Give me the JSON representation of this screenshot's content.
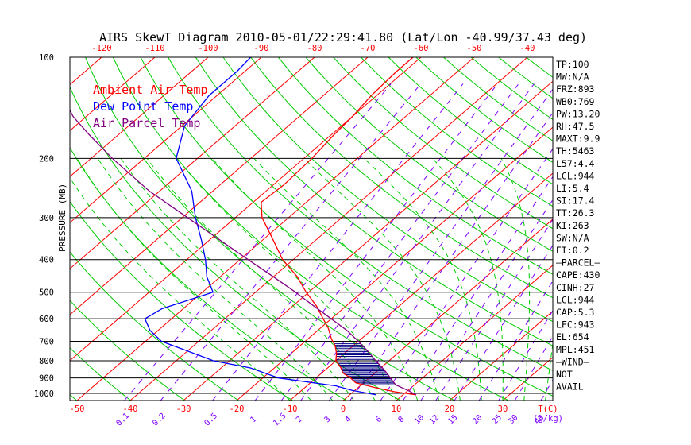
{
  "chart_data": {
    "type": "line",
    "title": "AIRS SkewT Diagram 2010-05-01/22:29:41.80 (Lat/Lon -40.99/37.43 deg)",
    "ylabel": "PRESSURE (MB)",
    "xlabel_bottom_unit": "T(C)",
    "mixing_ratio_unit": "(g/kg)",
    "ylim": [
      1050,
      100
    ],
    "yscale": "log",
    "pressure_ticks": [
      {
        "v": 100,
        "label": "100"
      },
      {
        "v": 200,
        "label": "200"
      },
      {
        "v": 300,
        "label": "300"
      },
      {
        "v": 400,
        "label": "400"
      },
      {
        "v": 500,
        "label": "500"
      },
      {
        "v": 600,
        "label": "600"
      },
      {
        "v": 700,
        "label": "700"
      },
      {
        "v": 800,
        "label": "800"
      },
      {
        "v": 900,
        "label": "900"
      },
      {
        "v": 1000,
        "label": "1000"
      }
    ],
    "top_temp_ticks": [
      -120,
      -110,
      -100,
      -90,
      -80,
      -70,
      -60,
      -50,
      -40
    ],
    "bottom_temp_ticks": [
      -50,
      -40,
      -30,
      -20,
      -10,
      0,
      10,
      20,
      30
    ],
    "mixing_ratio_labels": [
      "0.1",
      "0.2",
      "0.5",
      "1",
      "1.5",
      "2",
      "3",
      "4",
      "6",
      "8",
      "10",
      "12",
      "15",
      "20",
      "25",
      "30",
      "40"
    ],
    "legend": [
      {
        "name": "Ambient Air Temp",
        "color": "#ff0000"
      },
      {
        "name": "Dew Point Temp",
        "color": "#0000ff"
      },
      {
        "name": "Air Parcel Temp",
        "color": "#800080"
      }
    ],
    "legend_position": "top-left",
    "series": [
      {
        "name": "Ambient Air Temp",
        "color": "#ff0000",
        "points": [
          [
            1010,
            12.5
          ],
          [
            990,
            8.0
          ],
          [
            960,
            3.0
          ],
          [
            930,
            -1.5
          ],
          [
            900,
            -3.5
          ],
          [
            870,
            -6.0
          ],
          [
            840,
            -7.5
          ],
          [
            800,
            -10.0
          ],
          [
            760,
            -11.5
          ],
          [
            720,
            -13.5
          ],
          [
            690,
            -15.5
          ],
          [
            640,
            -18.5
          ],
          [
            600,
            -21.5
          ],
          [
            550,
            -25.5
          ],
          [
            500,
            -30.5
          ],
          [
            450,
            -35.5
          ],
          [
            400,
            -42.0
          ],
          [
            350,
            -48.0
          ],
          [
            300,
            -55.0
          ],
          [
            270,
            -58.5
          ],
          [
            240,
            -58.0
          ],
          [
            200,
            -58.5
          ],
          [
            170,
            -59.5
          ],
          [
            150,
            -60.0
          ],
          [
            130,
            -61.0
          ],
          [
            110,
            -61.5
          ],
          [
            100,
            -61.5
          ]
        ]
      },
      {
        "name": "Dew Point Temp",
        "color": "#0000ff",
        "points": [
          [
            1010,
            5.0
          ],
          [
            980,
            -0.5
          ],
          [
            950,
            -4.5
          ],
          [
            900,
            -17.0
          ],
          [
            840,
            -24.5
          ],
          [
            800,
            -33.0
          ],
          [
            700,
            -47.0
          ],
          [
            650,
            -51.5
          ],
          [
            600,
            -55.0
          ],
          [
            560,
            -54.0
          ],
          [
            500,
            -48.0
          ],
          [
            450,
            -52.5
          ],
          [
            400,
            -56.5
          ],
          [
            350,
            -61.5
          ],
          [
            300,
            -67.5
          ],
          [
            250,
            -74.0
          ],
          [
            200,
            -84.0
          ],
          [
            160,
            -89.5
          ],
          [
            130,
            -91.5
          ],
          [
            110,
            -91.5
          ],
          [
            100,
            -92.0
          ]
        ]
      },
      {
        "name": "Air Parcel Temp",
        "color": "#800080",
        "points": [
          [
            1010,
            12.5
          ],
          [
            980,
            10.0
          ],
          [
            944,
            6.5
          ],
          [
            900,
            4.0
          ],
          [
            850,
            1.0
          ],
          [
            800,
            -2.5
          ],
          [
            750,
            -6.0
          ],
          [
            700,
            -10.0
          ],
          [
            650,
            -14.5
          ],
          [
            600,
            -20.0
          ],
          [
            550,
            -26.0
          ],
          [
            500,
            -32.5
          ],
          [
            450,
            -40.0
          ],
          [
            400,
            -48.5
          ],
          [
            350,
            -58.0
          ],
          [
            300,
            -69.0
          ],
          [
            250,
            -82.0
          ],
          [
            200,
            -96.0
          ],
          [
            170,
            -105.5
          ],
          [
            150,
            -112.5
          ],
          [
            130,
            -119.0
          ],
          [
            115,
            -124.5
          ],
          [
            100,
            -130.0
          ]
        ]
      }
    ],
    "cape_shading": {
      "color": "#000080",
      "from_p": 944,
      "to_p": 700
    }
  },
  "indices": [
    "TP:100",
    "MW:N/A",
    "FRZ:893",
    "WB0:769",
    "PW:13.20",
    "RH:47.5",
    "MAXT:9.9",
    "TH:5463",
    "L57:4.4",
    "LCL:944",
    "LI:5.4",
    "SI:17.4",
    "TT:26.3",
    "KI:263",
    "SW:N/A",
    "EI:0.2",
    "—PARCEL—",
    "CAPE:430",
    "CINH:27",
    "LCL:944",
    "CAP:5.3",
    "LFC:943",
    "EL:654",
    "MPL:451",
    "—WIND—",
    "NOT",
    "AVAIL"
  ],
  "colors": {
    "isotherm": "#ff0000",
    "dry_adiabat": "#00cc00",
    "moist_adiabat": "#00cc00",
    "mixing_ratio": "#8000ff",
    "isobar": "#000000"
  }
}
